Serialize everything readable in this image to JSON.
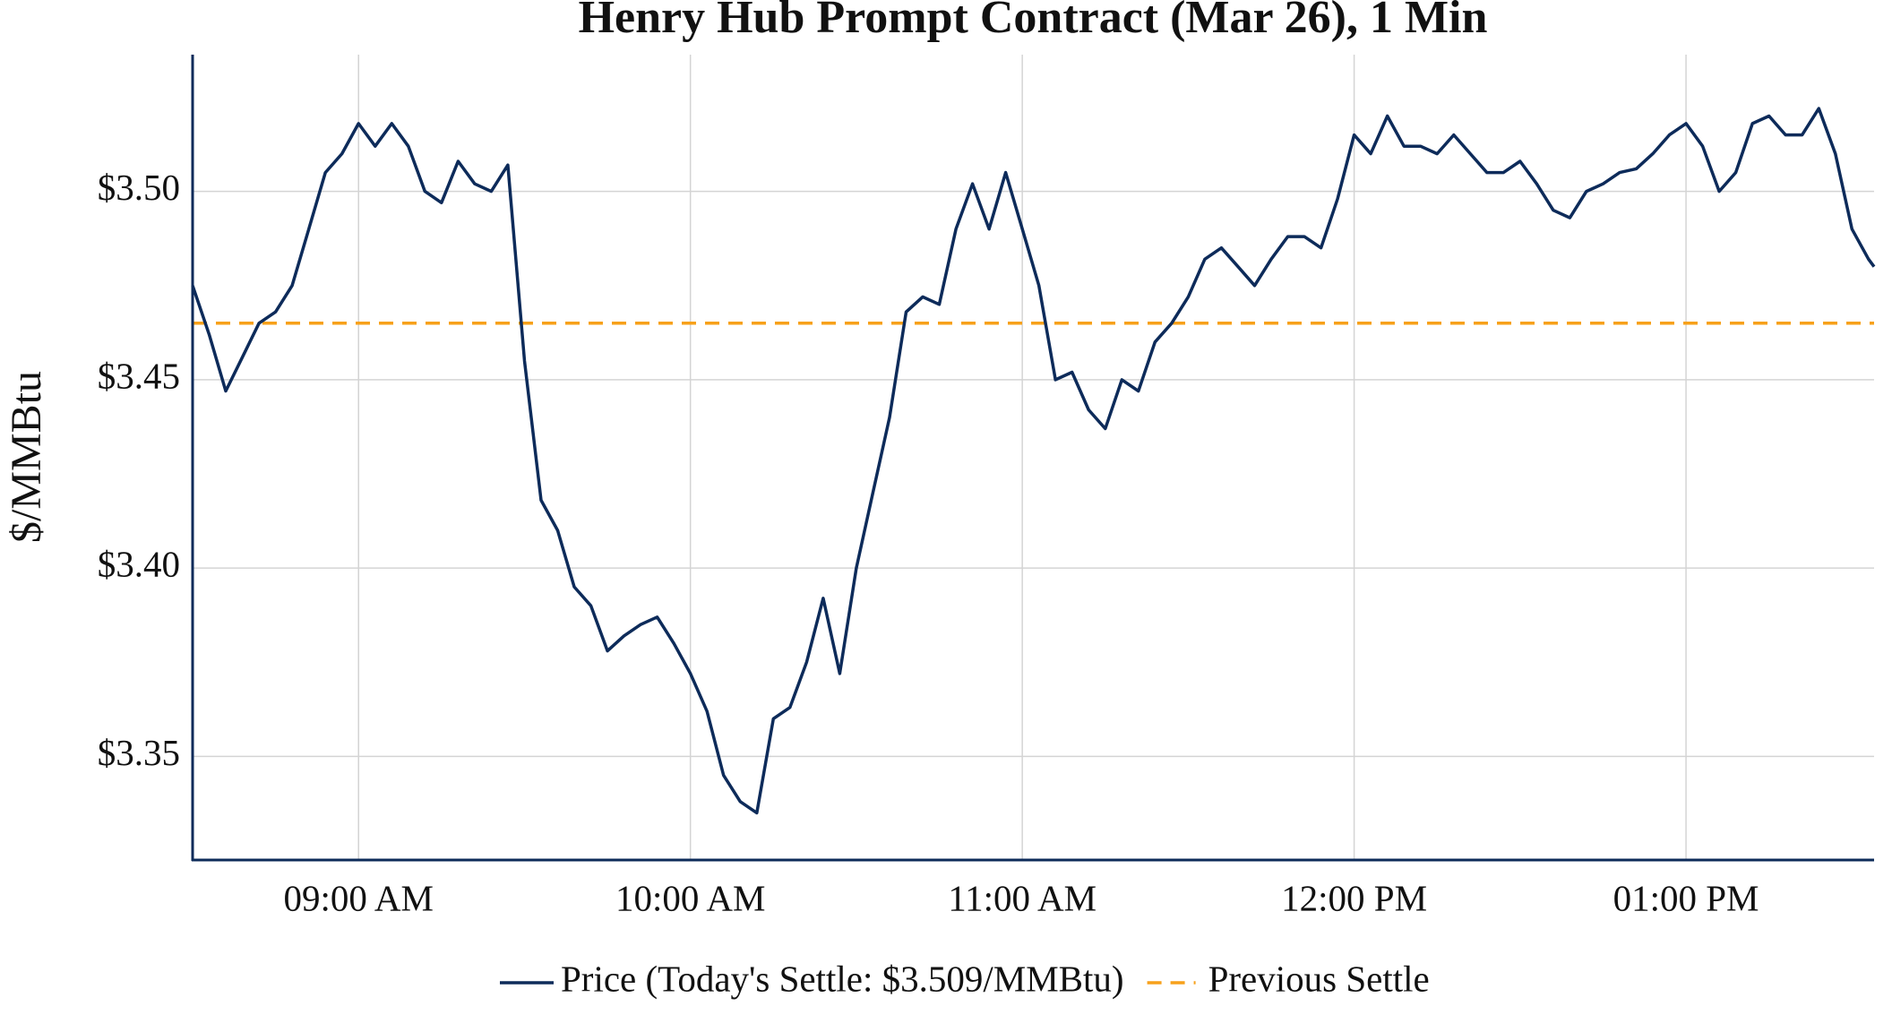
{
  "chart_data": {
    "type": "line",
    "title": "Henry Hub Prompt Contract (Mar 26), 1 Min",
    "y_label": "$/MMBtu",
    "x": [
      "08:30",
      "08:33",
      "08:36",
      "08:39",
      "08:42",
      "08:45",
      "08:48",
      "08:51",
      "08:54",
      "08:57",
      "09:00",
      "09:03",
      "09:06",
      "09:09",
      "09:12",
      "09:15",
      "09:18",
      "09:21",
      "09:24",
      "09:27",
      "09:30",
      "09:33",
      "09:36",
      "09:39",
      "09:42",
      "09:45",
      "09:48",
      "09:51",
      "09:54",
      "09:57",
      "10:00",
      "10:03",
      "10:06",
      "10:09",
      "10:12",
      "10:15",
      "10:18",
      "10:21",
      "10:24",
      "10:27",
      "10:30",
      "10:33",
      "10:36",
      "10:39",
      "10:42",
      "10:45",
      "10:48",
      "10:51",
      "10:54",
      "10:57",
      "11:00",
      "11:03",
      "11:06",
      "11:09",
      "11:12",
      "11:15",
      "11:18",
      "11:21",
      "11:24",
      "11:27",
      "11:30",
      "11:33",
      "11:36",
      "11:39",
      "11:42",
      "11:45",
      "11:48",
      "11:51",
      "11:54",
      "11:57",
      "12:00",
      "12:03",
      "12:06",
      "12:09",
      "12:12",
      "12:15",
      "12:18",
      "12:21",
      "12:24",
      "12:27",
      "12:30",
      "12:33",
      "12:36",
      "12:39",
      "12:42",
      "12:45",
      "12:48",
      "12:51",
      "12:54",
      "12:57",
      "13:00",
      "13:03",
      "13:06",
      "13:09",
      "13:12",
      "13:15",
      "13:18",
      "13:21",
      "13:24",
      "13:27",
      "13:30",
      "13:33",
      "13:34"
    ],
    "series": [
      {
        "name": "Price (Today's Settle: $3.509/MMBtu)",
        "color": "#0d2b5a",
        "values": [
          3.475,
          3.462,
          3.447,
          3.456,
          3.465,
          3.468,
          3.475,
          3.49,
          3.505,
          3.51,
          3.518,
          3.512,
          3.518,
          3.512,
          3.5,
          3.497,
          3.508,
          3.502,
          3.5,
          3.507,
          3.455,
          3.418,
          3.41,
          3.395,
          3.39,
          3.378,
          3.382,
          3.385,
          3.387,
          3.38,
          3.372,
          3.362,
          3.345,
          3.338,
          3.335,
          3.36,
          3.363,
          3.375,
          3.392,
          3.372,
          3.4,
          3.42,
          3.44,
          3.468,
          3.472,
          3.47,
          3.49,
          3.502,
          3.49,
          3.505,
          3.49,
          3.475,
          3.45,
          3.452,
          3.442,
          3.437,
          3.45,
          3.447,
          3.46,
          3.465,
          3.472,
          3.482,
          3.485,
          3.48,
          3.475,
          3.482,
          3.488,
          3.488,
          3.485,
          3.498,
          3.515,
          3.51,
          3.52,
          3.512,
          3.512,
          3.51,
          3.515,
          3.51,
          3.505,
          3.505,
          3.508,
          3.502,
          3.495,
          3.493,
          3.5,
          3.502,
          3.505,
          3.506,
          3.51,
          3.515,
          3.518,
          3.512,
          3.5,
          3.505,
          3.518,
          3.52,
          3.515,
          3.515,
          3.522,
          3.51,
          3.49,
          3.482,
          3.48
        ]
      }
    ],
    "hlines": [
      {
        "name": "Previous Settle",
        "value": 3.465,
        "color": "#f7a11a"
      }
    ],
    "xlim": [
      "08:30",
      "13:34"
    ],
    "xticks": [
      {
        "value": "09:00",
        "label": "09:00 AM"
      },
      {
        "value": "10:00",
        "label": "10:00 AM"
      },
      {
        "value": "11:00",
        "label": "11:00 AM"
      },
      {
        "value": "12:00",
        "label": "12:00 PM"
      },
      {
        "value": "13:00",
        "label": "01:00 PM"
      }
    ],
    "ylim": [
      3.3225,
      3.5363
    ],
    "yticks": [
      {
        "value": 3.35,
        "label": "$3.35"
      },
      {
        "value": 3.4,
        "label": "$3.40"
      },
      {
        "value": 3.45,
        "label": "$3.45"
      },
      {
        "value": 3.5,
        "label": "$3.50"
      }
    ],
    "grid": true,
    "legend": "bottom"
  }
}
